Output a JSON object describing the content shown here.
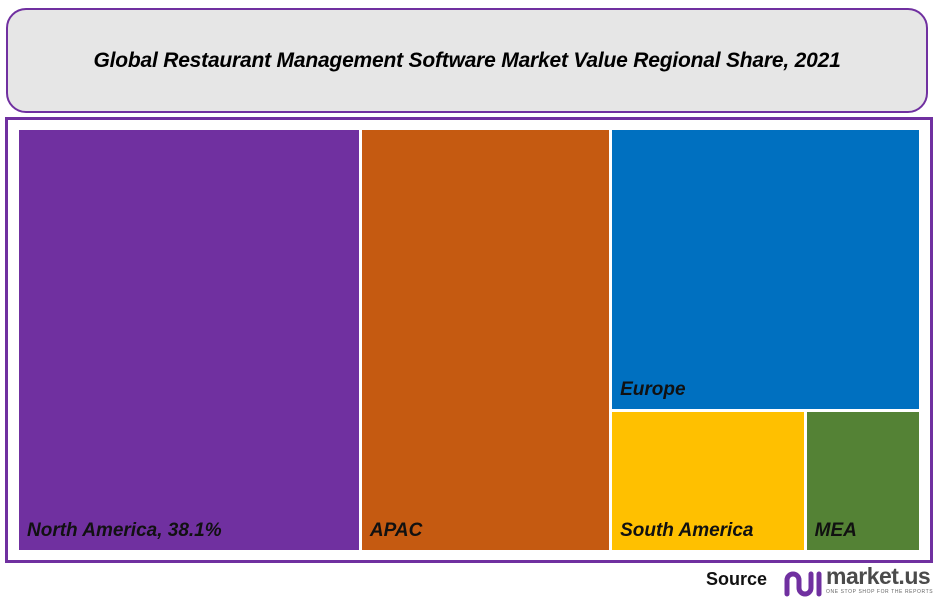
{
  "chart_data": {
    "type": "treemap",
    "title": "Global Restaurant Management Software Market Value Regional Share, 2021",
    "unit": "%",
    "items": [
      {
        "name": "North America",
        "value": 38.1,
        "label": "North America, 38.1%",
        "color": "#7030a0"
      },
      {
        "name": "APAC",
        "value": 27.8,
        "label": "APAC",
        "color": "#c55a11"
      },
      {
        "name": "Europe",
        "value": 22.9,
        "label": "Europe",
        "color": "#0070c0"
      },
      {
        "name": "South America",
        "value": 7.1,
        "label": "South America",
        "color": "#ffc000"
      },
      {
        "name": "MEA",
        "value": 4.1,
        "label": "MEA",
        "color": "#548235"
      }
    ],
    "legend": "none"
  },
  "footer": {
    "source_label": "Source",
    "logo_text": "market.us",
    "logo_tagline": "ONE STOP SHOP FOR THE REPORTS"
  },
  "colors": {
    "frame": "#7030a0",
    "title_bg": "#e6e6e6"
  }
}
